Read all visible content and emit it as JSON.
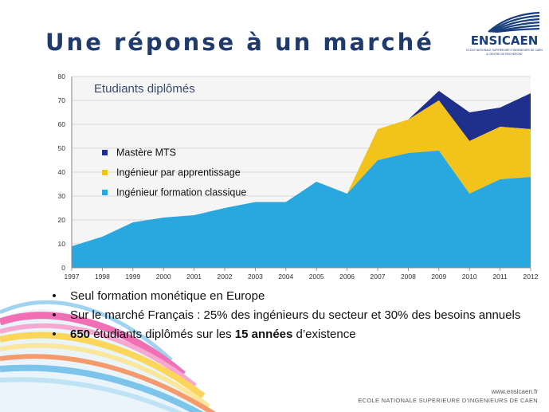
{
  "slide": {
    "title": "Une réponse à un marché",
    "logo": {
      "name": "ENSICAEN",
      "subtitle_line1": "ECOLE NATIONALE SUPERIEURE D'INGENIEURS DE CAEN",
      "subtitle_line2": "& CENTRE DE RECHERCHE"
    },
    "bullets": [
      {
        "text": "Seul formation monétique en Europe"
      },
      {
        "text": "Sur le marché Français : 25% des ingénieurs du secteur et 30% des besoins annuels"
      },
      {
        "pre": "",
        "b1": "650",
        "mid": " étudiants diplômés sur les ",
        "b2": "15 années",
        "post": " d’existence"
      }
    ],
    "bullet_glyph": "•",
    "footer": {
      "url": "www.ensicaen.fr",
      "school": "ECOLE NATIONALE SUPERIEURE D’INGENIEURS DE CAEN"
    }
  },
  "colors": {
    "title": "#1f3a6b",
    "classique": "#29a8e0",
    "apprentissage": "#f2c31b",
    "mts": "#1e2f8c",
    "plot_bg": "#f5f5f5"
  },
  "chart_data": {
    "type": "area",
    "stacked": true,
    "title": "Etudiants diplômés",
    "x": [
      "1997",
      "1998",
      "1999",
      "2000",
      "2001",
      "2002",
      "2003",
      "2004",
      "2005",
      "2006",
      "2007",
      "2008",
      "2009",
      "2010",
      "2011",
      "2012"
    ],
    "ylim": [
      0,
      80
    ],
    "yticks": [
      0,
      10,
      20,
      30,
      40,
      50,
      60,
      70,
      80
    ],
    "grid": true,
    "legend_position": "left-middle",
    "series": [
      {
        "name": "Ingénieur formation classique",
        "values": [
          9,
          13,
          19,
          21,
          22,
          25,
          27.5,
          27.5,
          36,
          31,
          45,
          48,
          49,
          31,
          37,
          38
        ]
      },
      {
        "name": "Ingénieur par apprentissage",
        "values": [
          0,
          0,
          0,
          0,
          0,
          0,
          0,
          0,
          0,
          0,
          13,
          14,
          21,
          22,
          22,
          20
        ]
      },
      {
        "name": "Mastère MTS",
        "values": [
          0,
          0,
          0,
          0,
          0,
          0,
          0,
          0,
          0,
          0,
          0,
          0,
          4,
          12,
          8,
          15
        ]
      }
    ],
    "legend_order": [
      "Mastère MTS",
      "Ingénieur par apprentissage",
      "Ingénieur formation classique"
    ]
  }
}
